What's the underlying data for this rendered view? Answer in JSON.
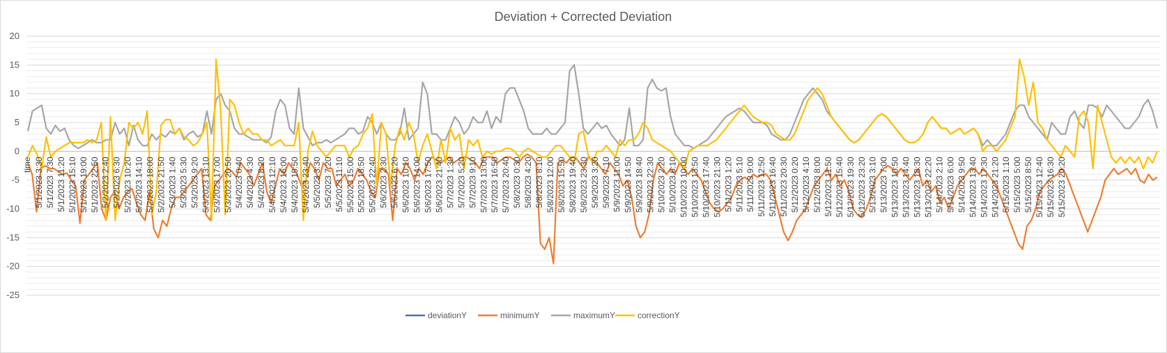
{
  "chart_data": {
    "type": "line",
    "title": "Deviation + Corrected Deviation",
    "xlabel": "time",
    "ylabel": "",
    "ylim": [
      -25,
      20
    ],
    "yticks": [
      20,
      15,
      10,
      5,
      0,
      -5,
      -10,
      -15,
      -20,
      -25
    ],
    "grid": "major and minor horizontal gridlines",
    "legend_position": "bottom",
    "x_tick_labels": [
      "5/1/2023 3:30",
      "5/1/2023 7:30",
      "5/1/2023 11:20",
      "5/1/2023 15:10",
      "5/1/2023 19:00",
      "5/1/2023 22:50",
      "5/2/2023 2:40",
      "5/2/2023 6:30",
      "5/2/2023 10:20",
      "5/2/2023 14:10",
      "5/2/2023 18:00",
      "5/2/2023 21:50",
      "5/3/2023 1:40",
      "5/3/2023 5:30",
      "5/3/2023 9:20",
      "5/3/2023 13:10",
      "5/3/2023 17:00",
      "5/3/2023 20:50",
      "5/4/2023 0:40",
      "5/4/2023 4:30",
      "5/4/2023 8:20",
      "5/4/2023 12:10",
      "5/4/2023 16:00",
      "5/4/2023 19:50",
      "5/4/2023 23:40",
      "5/5/2023 3:30",
      "5/5/2023 7:20",
      "5/5/2023 11:10",
      "5/5/2023 15:00",
      "5/5/2023 18:50",
      "5/5/2023 22:40",
      "5/6/2023 2:30",
      "5/6/2023 6:20",
      "5/6/2023 10:10",
      "5/6/2023 14:00",
      "5/6/2023 17:50",
      "5/6/2023 21:40",
      "5/7/2023 1:30",
      "5/7/2023 5:20",
      "5/7/2023 9:10",
      "5/7/2023 13:00",
      "5/7/2023 16:50",
      "5/7/2023 20:40",
      "5/8/2023 0:30",
      "5/8/2023 4:20",
      "5/8/2023 8:10",
      "5/8/2023 12:00",
      "5/8/2023 15:50",
      "5/8/2023 19:40",
      "5/8/2023 23:30",
      "5/9/2023 3:20",
      "5/9/2023 7:10",
      "5/9/2023 11:00",
      "5/9/2023 14:50",
      "5/9/2023 18:40",
      "5/9/2023 22:30",
      "5/10/2023 2:20",
      "5/10/2023 6:10",
      "5/10/2023 10:00",
      "5/10/2023 13:50",
      "5/10/2023 17:40",
      "5/10/2023 21:30",
      "5/11/2023 1:20",
      "5/11/2023 5:10",
      "5/11/2023 9:00",
      "5/11/2023 12:50",
      "5/11/2023 16:40",
      "5/11/2023 20:30",
      "5/12/2023 0:20",
      "5/12/2023 4:10",
      "5/12/2023 8:00",
      "5/12/2023 11:50",
      "5/12/2023 15:40",
      "5/12/2023 19:30",
      "5/12/2023 23:20",
      "5/13/2023 3:10",
      "5/13/2023 7:00",
      "5/13/2023 10:50",
      "5/13/2023 14:40",
      "5/13/2023 18:30",
      "5/13/2023 22:20",
      "5/14/2023 2:10",
      "5/14/2023 6:00",
      "5/14/2023 9:50",
      "5/14/2023 13:40",
      "5/14/2023 17:30",
      "5/14/2023 21:20",
      "5/15/2023 1:10",
      "5/15/2023 5:00",
      "5/15/2023 8:50",
      "5/15/2023 12:40",
      "5/15/2023 16:30",
      "5/15/2023 20:20"
    ],
    "series": [
      {
        "name": "deviationY",
        "color": "#4472C4",
        "values": []
      },
      {
        "name": "minimumY",
        "color": "#ED7D31",
        "values": [
          -2,
          -4,
          -10.5,
          -3,
          -2.5,
          -3,
          -3,
          -3.5,
          -4,
          -3.8,
          -5,
          -6,
          -12.5,
          -5,
          -4,
          -3,
          -2,
          -10,
          -12,
          -8,
          -7,
          -10,
          -8,
          -7,
          -6.5,
          -9,
          -11,
          -12,
          -7,
          -13.5,
          -15,
          -12,
          -13,
          -10,
          -8,
          -8,
          -7,
          -6,
          -5,
          -4,
          -3,
          -11,
          -12,
          -6,
          -5,
          -4,
          -3,
          -3.5,
          -4.5,
          -2,
          -3,
          -4,
          -6,
          -4,
          -2,
          -7,
          -9,
          -6,
          -3,
          -4,
          -2,
          -3,
          -4,
          -6,
          -5,
          -2,
          -3,
          -5,
          -2,
          -3,
          -3,
          -6,
          -5,
          -4,
          -6,
          -5,
          -3,
          -4,
          -5,
          -7,
          -8,
          -3,
          -3,
          -4,
          -12,
          -3,
          -4,
          -2,
          -3,
          -5,
          -3,
          -4,
          -2,
          -1,
          -1.5,
          -2,
          -1.5,
          -1,
          -2,
          -1.5,
          -1,
          -1,
          -1.5,
          -2,
          -3,
          -1,
          -1,
          -1,
          -2,
          -1.5,
          -1,
          -1,
          -1.5,
          -2,
          -1,
          -0.5,
          -1,
          -2,
          -16,
          -17,
          -15,
          -19.5,
          -2,
          -1.5,
          -2,
          -1,
          -1,
          -2,
          -3,
          -1,
          -1.5,
          -2,
          -3,
          -4,
          -2,
          -3,
          -4,
          -6,
          -5,
          -8,
          -13,
          -15,
          -14,
          -11,
          -5,
          -2,
          -3,
          -4,
          -3,
          -4,
          -2,
          -3,
          -4,
          -3,
          -4,
          -5,
          -7,
          -9,
          -10,
          -10.5,
          -10,
          -9,
          -8,
          -6,
          -5,
          -4.5,
          -5,
          -4,
          -4.5,
          -4,
          -4,
          -5,
          -8,
          -11,
          -14,
          -15.5,
          -14,
          -12,
          -11,
          -10,
          -8,
          -6,
          -5,
          -4,
          -3,
          -5,
          -4,
          -6,
          -5,
          -7,
          -10,
          -11,
          -11.5,
          -10,
          -8,
          -5,
          -4,
          -3,
          -2.5,
          -3,
          -4,
          -3,
          -4,
          -5,
          -4,
          -3,
          -6,
          -5,
          -7,
          -6,
          -9,
          -8,
          -10,
          -8,
          -6,
          -5,
          -4,
          -3,
          -3,
          -4,
          -3,
          -4,
          -5,
          -6,
          -8,
          -10,
          -12,
          -14,
          -16,
          -17,
          -13,
          -12,
          -10,
          -7,
          -6,
          -5,
          -4.5,
          -4,
          -3,
          -4,
          -6,
          -8,
          -10,
          -12,
          -14,
          -12,
          -10,
          -8,
          -5,
          -4,
          -3,
          -4,
          -3.5,
          -3,
          -4,
          -3,
          -5,
          -5.5,
          -4,
          -5,
          -4.5
        ]
      },
      {
        "name": "maximumY",
        "color": "#A5A5A5",
        "values": [
          3.5,
          7,
          7.5,
          8,
          4,
          3,
          4.5,
          3.5,
          4,
          2,
          1,
          0.5,
          1,
          1.5,
          2,
          1.5,
          1.5,
          2,
          2,
          5,
          3,
          4,
          1,
          4.5,
          2,
          1,
          1,
          3,
          2,
          3,
          2.5,
          3.5,
          3,
          4,
          2,
          3,
          3.5,
          2.5,
          3,
          7,
          3,
          9,
          10,
          8,
          7,
          4,
          3,
          3,
          2.5,
          2,
          2,
          2,
          1.5,
          2.5,
          7,
          9,
          8,
          4,
          3,
          11,
          4,
          2.5,
          1,
          1.5,
          1.5,
          2,
          1.5,
          2,
          2.5,
          3,
          4,
          4,
          3,
          3.5,
          6,
          5,
          3,
          5,
          3,
          2,
          2,
          3,
          7.5,
          2,
          3,
          4,
          12,
          10,
          3,
          3,
          2,
          2,
          4,
          6,
          5,
          3,
          4,
          6,
          5,
          5,
          7,
          4,
          6,
          5,
          10,
          11,
          11,
          9,
          7,
          4,
          3,
          3,
          3,
          4,
          3,
          3,
          4,
          5,
          14,
          15,
          10,
          4,
          3,
          4,
          5,
          4,
          4.5,
          3,
          2,
          1,
          2,
          7.5,
          1,
          1,
          2,
          11,
          12.5,
          11,
          10.5,
          11,
          6,
          3,
          2,
          1,
          1,
          0.5,
          1,
          1.5,
          2,
          3,
          4,
          5,
          6,
          6.5,
          7,
          7.5,
          7,
          6,
          5,
          5,
          5,
          4.5,
          3,
          2.5,
          2,
          2,
          3,
          5,
          7,
          9,
          10,
          11,
          10,
          9,
          7,
          6,
          5,
          4,
          3,
          2,
          1.5,
          2,
          3,
          4,
          5,
          6,
          6.5,
          6,
          5,
          4,
          3,
          2,
          1.5,
          1.5,
          2,
          3,
          5,
          6,
          5,
          4,
          4,
          3,
          3.5,
          4,
          3,
          3.5,
          4,
          3,
          1,
          2,
          1,
          1,
          2,
          3,
          5,
          7,
          8,
          8,
          6,
          5,
          4,
          3,
          2,
          5,
          4,
          3,
          3,
          6,
          7,
          5,
          4,
          8,
          8,
          7.5,
          6,
          8,
          7,
          6,
          5,
          4,
          4,
          5,
          6,
          8,
          9,
          7,
          4
        ]
      },
      {
        "name": "correctionY",
        "color": "#FFC000",
        "values": [
          -1,
          1,
          -0.5,
          -3,
          2.5,
          -1,
          0,
          0.5,
          1,
          1.5,
          1.5,
          1.5,
          1.5,
          2,
          1.5,
          2,
          5,
          -12,
          6,
          -12,
          -5,
          -2,
          5,
          4,
          5,
          3,
          7,
          -11,
          -7,
          4.5,
          5.5,
          5.5,
          3,
          4,
          2.5,
          2,
          1,
          1.5,
          3,
          5,
          -12,
          16,
          7,
          -11,
          9,
          8,
          5,
          3,
          4,
          3,
          3,
          2,
          2,
          1,
          1.5,
          2,
          1,
          1,
          1,
          5,
          -12,
          0,
          3.5,
          1,
          0,
          -1,
          0,
          1,
          1,
          1,
          -1,
          0.5,
          1,
          3,
          4,
          6.5,
          -6,
          5,
          3,
          -6,
          1,
          4,
          2,
          5,
          3,
          -2,
          1,
          3,
          0,
          -3,
          2,
          -2,
          4,
          2,
          3,
          -3,
          2,
          1,
          2,
          -1,
          0,
          -0.5,
          0,
          0,
          0.5,
          0.5,
          0,
          -1,
          0,
          0.5,
          0,
          -0.5,
          -1,
          -1,
          0,
          1,
          1,
          0,
          -1,
          -2,
          3,
          3.5,
          -0.5,
          -2,
          0,
          0,
          1,
          0,
          -1,
          2,
          1,
          2,
          2,
          3,
          5,
          4,
          2,
          1.5,
          1,
          0.5,
          0,
          -1,
          -2,
          -3,
          0,
          0.5,
          1,
          1,
          1,
          1.5,
          2,
          3,
          4,
          5,
          6,
          7,
          8,
          7,
          6,
          5.5,
          5,
          5,
          4.5,
          3,
          2.5,
          2,
          2,
          3,
          5,
          7,
          9,
          10,
          11,
          10,
          8,
          6,
          5,
          4,
          3,
          2,
          1.5,
          2,
          3,
          4,
          5,
          6,
          6.5,
          6,
          5,
          4,
          3,
          2,
          1.5,
          1.5,
          2,
          3,
          5,
          6,
          5,
          4,
          4,
          3,
          3.5,
          4,
          3,
          3.5,
          4,
          3,
          0,
          1,
          1,
          0,
          1,
          2,
          4,
          6,
          16,
          13,
          8,
          12,
          5,
          4,
          2,
          1,
          0,
          -1,
          1,
          0,
          -1,
          6,
          7,
          5,
          -3,
          8,
          5,
          2,
          -1,
          -2,
          -1,
          -2,
          -1,
          -2,
          -1,
          -3,
          -1,
          -2,
          0
        ]
      }
    ]
  }
}
